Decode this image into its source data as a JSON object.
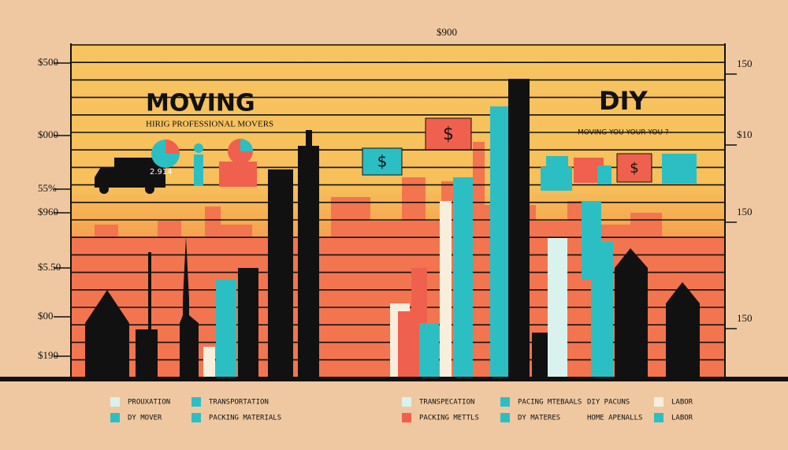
{
  "header": {
    "top_label": "$900"
  },
  "left_axis": [
    "$500",
    "$000",
    "55%",
    "$960",
    "$5.50",
    "$00",
    "$190"
  ],
  "right_axis": [
    "150",
    "$10",
    "150",
    "150"
  ],
  "moving": {
    "title": "MOVING",
    "subtitle": "HIRIG PROFESSIONAL MOVERS",
    "chart_label": "2.914"
  },
  "diy": {
    "title": "DIY",
    "subtitle": "MOVING YOU YOUR YOU ?"
  },
  "legend": [
    {
      "label": "PROUXATION",
      "color": "#d9f2ee"
    },
    {
      "label": "DY MOVER",
      "color": "#2bbfc4"
    },
    {
      "label": "TRANSPORTATION",
      "color": "#2bbfc4"
    },
    {
      "label": "PACKING MATERIALS",
      "color": "#2bbfc4"
    },
    {
      "label": "TRANSPECATION",
      "color": "#d9f2ee"
    },
    {
      "label": "PACKING METTLS",
      "color": "#f0604f"
    },
    {
      "label": "PACING MTEBAALS",
      "color": "#2bbfc4"
    },
    {
      "label": "DY MATERES",
      "color": "#2bbfc4"
    },
    {
      "label": "DIY PACUNS",
      "color": "#ffffff"
    },
    {
      "label": "HOME APENALLS",
      "color": "#ffffff"
    },
    {
      "label": "LABOR",
      "color": "#f7eedc"
    },
    {
      "label": "LABOR",
      "color": "#2bbfc4"
    }
  ]
}
